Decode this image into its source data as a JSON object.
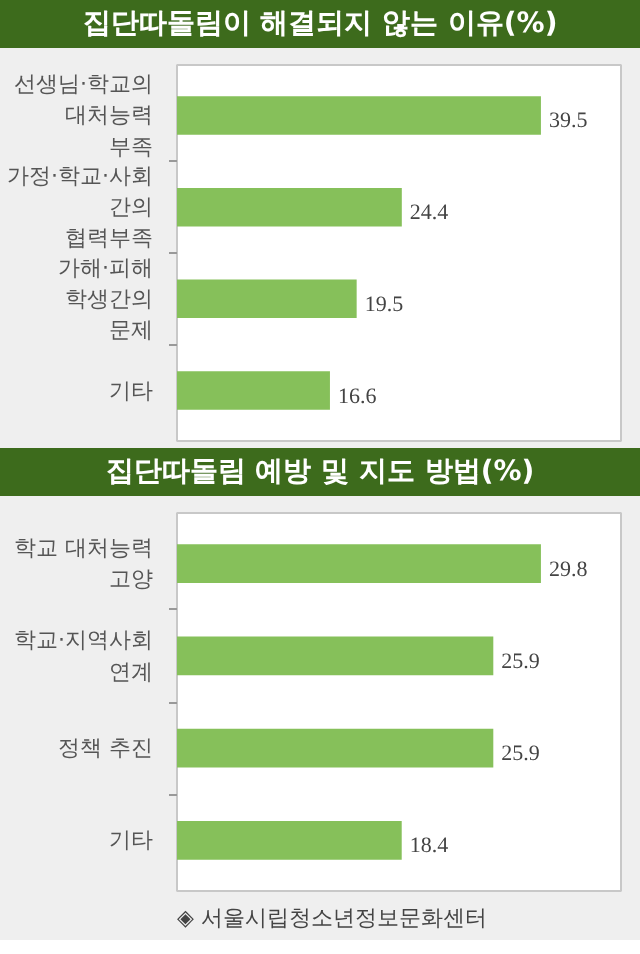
{
  "chart_data": [
    {
      "type": "bar",
      "orientation": "horizontal",
      "title": "집단따돌림이 해결되지 않는 이유(%)",
      "categories": [
        "선생님·학교의\n대처능력\n부족",
        "가정·학교·사회\n간의\n협력부족",
        "가해·피해\n학생간의\n문제",
        "기타"
      ],
      "values": [
        39.5,
        24.4,
        19.5,
        16.6
      ],
      "color": "#86c05a",
      "data_labels": true
    },
    {
      "type": "bar",
      "orientation": "horizontal",
      "title": "집단따돌림 예방 및 지도 방법(%)",
      "categories": [
        "학교 대처능력\n고양",
        "학교·지역사회\n연계",
        "정책 추진",
        "기타"
      ],
      "values": [
        29.8,
        25.9,
        25.9,
        18.4
      ],
      "color": "#86c05a",
      "data_labels": true,
      "annotations": [
        "◈ 서울시립청소년정보문화센터"
      ]
    }
  ]
}
